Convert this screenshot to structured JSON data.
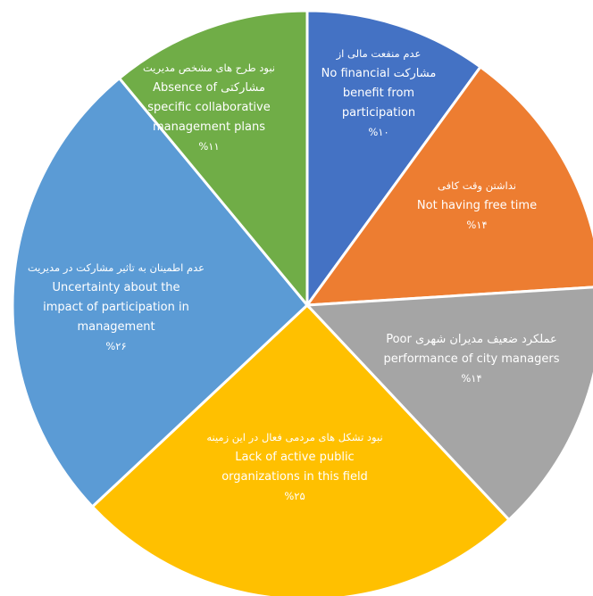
{
  "chart_data": {
    "type": "pie",
    "title": "",
    "start_angle_deg": 0,
    "direction": "clockwise",
    "slices": [
      {
        "name": "No financial benefit from participation",
        "value": 10,
        "color": "#4472C4",
        "label_lines": [
          {
            "text": "عدم منفعت مالی از",
            "style": "fa"
          },
          {
            "text": "مشارکت No financial",
            "style": "mixed"
          },
          {
            "text": "benefit from",
            "style": "en"
          },
          {
            "text": "participation",
            "style": "en"
          },
          {
            "text": "%۱۰",
            "style": "pct"
          }
        ]
      },
      {
        "name": "Not having free time",
        "value": 14,
        "color": "#ED7D31",
        "label_lines": [
          {
            "text": "نداشتن وقت کافی",
            "style": "fa"
          },
          {
            "text": "Not having free time",
            "style": "en"
          },
          {
            "text": "%۱۴",
            "style": "pct"
          }
        ]
      },
      {
        "name": "Poor performance of city managers",
        "value": 14,
        "color": "#A5A5A5",
        "label_lines": [
          {
            "text": "عملکرد ضعیف مدیران شهری Poor",
            "style": "mixed"
          },
          {
            "text": "performance of city managers",
            "style": "en"
          },
          {
            "text": "%۱۴",
            "style": "pct"
          }
        ]
      },
      {
        "name": "Lack of active public organizations in this field",
        "value": 25,
        "color": "#FFC000",
        "label_lines": [
          {
            "text": "نبود تشکل های مردمی فعال در این زمینه",
            "style": "fa"
          },
          {
            "text": "Lack of active public",
            "style": "en"
          },
          {
            "text": "organizations in this field",
            "style": "en"
          },
          {
            "text": "%۲۵",
            "style": "pct"
          }
        ]
      },
      {
        "name": "Uncertainty about the impact of participation in management",
        "value": 26,
        "color": "#5B9BD5",
        "label_lines": [
          {
            "text": "عدم اطمینان به تاثیر مشارکت در مدیریت",
            "style": "fa"
          },
          {
            "text": "Uncertainty about the",
            "style": "en"
          },
          {
            "text": "impact of participation in",
            "style": "en"
          },
          {
            "text": "management",
            "style": "en"
          },
          {
            "text": "%۲۶",
            "style": "pct"
          }
        ]
      },
      {
        "name": "Absence of specific collaborative management plans",
        "value": 11,
        "color": "#70AD47",
        "label_lines": [
          {
            "text": "نبود طرح های مشخص مدیریت",
            "style": "fa"
          },
          {
            "text": "مشارکتی Absence of",
            "style": "mixed"
          },
          {
            "text": "specific collaborative",
            "style": "en"
          },
          {
            "text": "management plans",
            "style": "en"
          },
          {
            "text": "%۱۱",
            "style": "pct"
          }
        ]
      }
    ]
  }
}
